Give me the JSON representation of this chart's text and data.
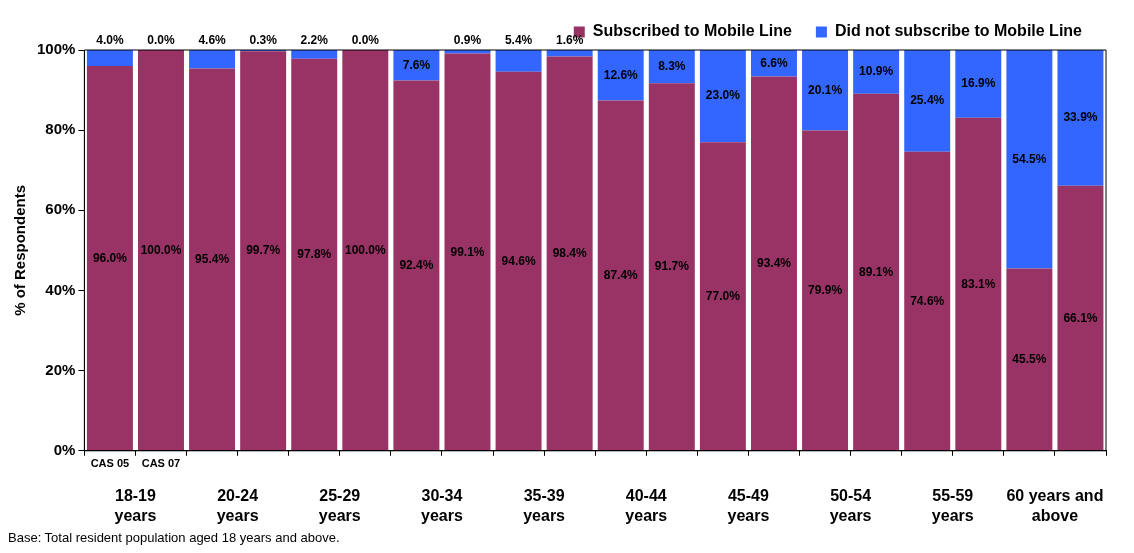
{
  "chart_data": {
    "type": "bar",
    "stacked": true,
    "legend": "top right",
    "grid": false,
    "ylabel": "% of Respondents",
    "categories": [
      "CAS 05",
      "CAS 07",
      null,
      null,
      null,
      null,
      null,
      null,
      null,
      null,
      null,
      null,
      null,
      null,
      null,
      null,
      null,
      null,
      null,
      null
    ],
    "ylim": [
      0,
      100
    ],
    "yticks": [
      {
        "value": 0,
        "label": "0%"
      },
      {
        "value": 20,
        "label": "20%"
      },
      {
        "value": 40,
        "label": "40%"
      },
      {
        "value": 60,
        "label": "60%"
      },
      {
        "value": 80,
        "label": "80%"
      },
      {
        "value": 100,
        "label": "100%"
      }
    ],
    "series": [
      {
        "name": "Subscribed to Mobile Line",
        "color": "#993366",
        "values": [
          96.0,
          100.0,
          95.4,
          99.7,
          97.8,
          100.0,
          92.4,
          99.1,
          94.6,
          98.4,
          87.4,
          91.7,
          77.0,
          93.4,
          79.9,
          89.1,
          74.6,
          83.1,
          45.5,
          66.1
        ],
        "value_labels": [
          "96.0%",
          "100.0%",
          "95.4%",
          "99.7%",
          "97.8%",
          "100.0%",
          "92.4%",
          "99.1%",
          "94.6%",
          "98.4%",
          "87.4%",
          "91.7%",
          "77.0%",
          "93.4%",
          "79.9%",
          "89.1%",
          "74.6%",
          "83.1%",
          "45.5%",
          "66.1%"
        ]
      },
      {
        "name": "Did not subscribe to Mobile Line",
        "color": "#3366ff",
        "values": [
          4.0,
          0.0,
          4.6,
          0.3,
          2.2,
          0.0,
          7.6,
          0.9,
          5.4,
          1.6,
          12.6,
          8.3,
          23.0,
          6.6,
          20.1,
          10.9,
          25.4,
          16.9,
          54.5,
          33.9
        ],
        "value_labels": [
          "4.0%",
          "0.0%",
          "4.6%",
          "0.3%",
          "2.2%",
          "0.0%",
          "7.6%",
          "0.9%",
          "5.4%",
          "1.6%",
          "12.6%",
          "8.3%",
          "23.0%",
          "6.6%",
          "20.1%",
          "10.9%",
          "25.4%",
          "16.9%",
          "54.5%",
          "33.9%"
        ]
      }
    ],
    "annotations": [
      "18-19 years",
      "20-24 years",
      "25-29 years",
      "30-34 years",
      "35-39 years",
      "40-44 years",
      "45-49 years",
      "50-54 years",
      "55-59 years",
      "60 years and above",
      "Base: Total resident population aged 18 years and above."
    ]
  }
}
